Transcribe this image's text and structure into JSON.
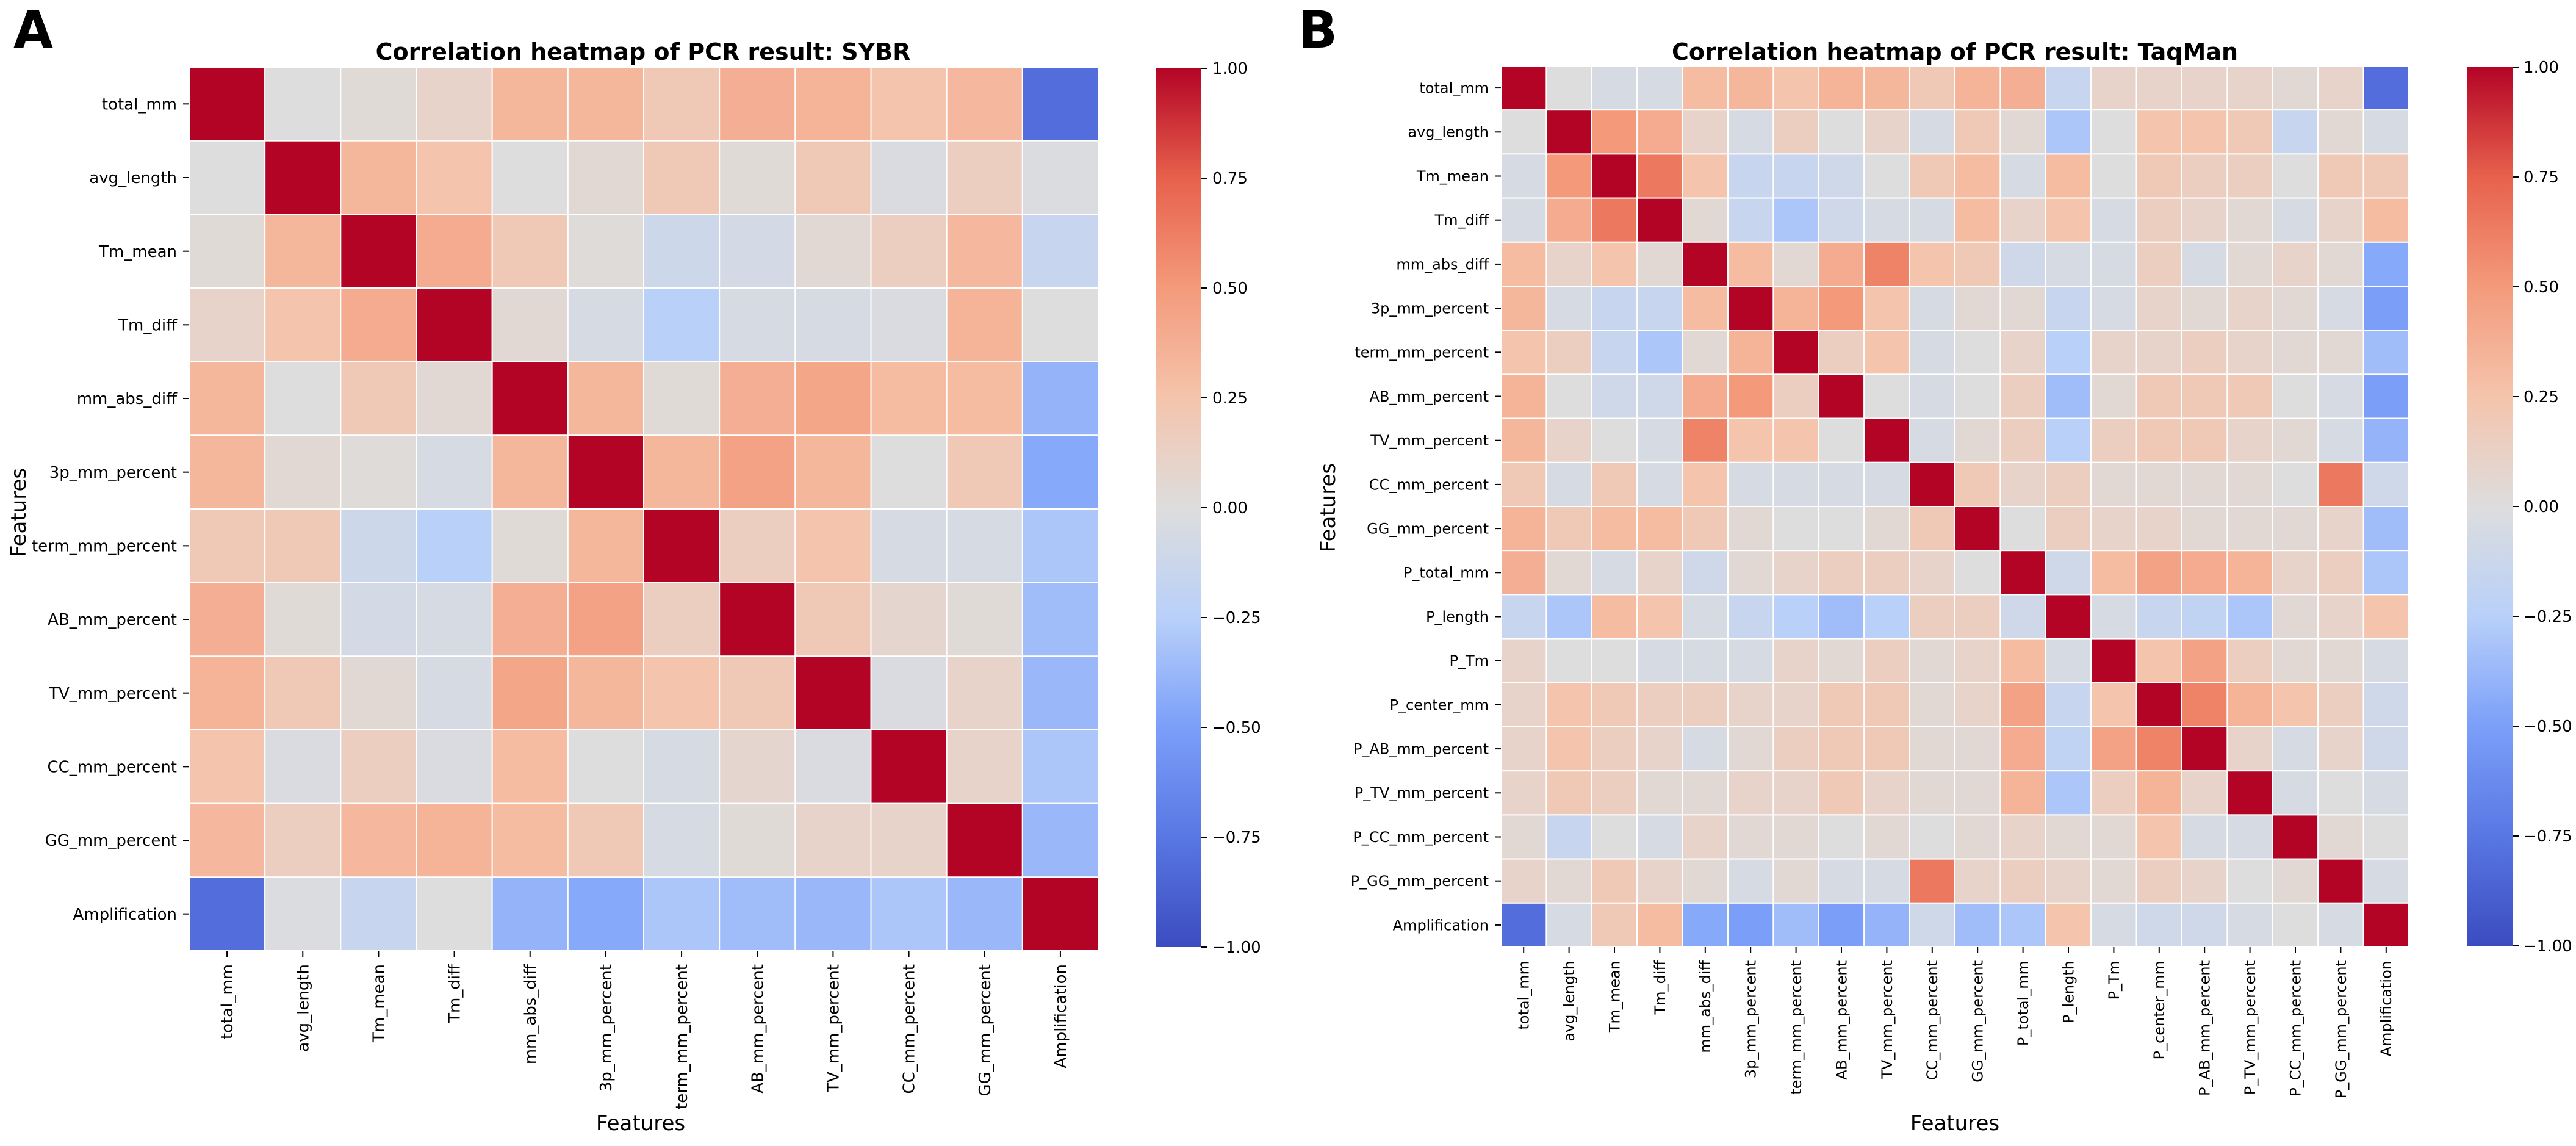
{
  "panel_letters": [
    "A",
    "B"
  ],
  "colorbar": {
    "ticks": [
      "1.00",
      "0.75",
      "0.50",
      "0.25",
      "0.00",
      "−0.25",
      "−0.50",
      "−0.75",
      "−1.00"
    ],
    "vmin": -1,
    "vmax": 1,
    "colormap": "coolwarm",
    "colors": {
      "neg_end": "#3b4cc0",
      "mid": "#dddddd",
      "pos_end": "#b40426"
    }
  },
  "chart_data": [
    {
      "type": "heatmap",
      "panel": "A",
      "title": "Correlation heatmap of PCR result: SYBR",
      "xlabel": "Features",
      "ylabel": "Features",
      "labels": [
        "total_mm",
        "avg_length",
        "Tm_mean",
        "Tm_diff",
        "mm_abs_diff",
        "3p_mm_percent",
        "term_mm_percent",
        "AB_mm_percent",
        "TV_mm_percent",
        "CC_mm_percent",
        "GG_mm_percent",
        "Amplification"
      ],
      "clim": [
        -1,
        1
      ],
      "matrix": [
        [
          1.0,
          0.0,
          0.03,
          0.1,
          0.33,
          0.33,
          0.2,
          0.38,
          0.35,
          0.25,
          0.32,
          -0.8
        ],
        [
          0.0,
          1.0,
          0.33,
          0.25,
          0.0,
          0.05,
          0.2,
          0.03,
          0.2,
          -0.03,
          0.15,
          -0.02
        ],
        [
          0.03,
          0.33,
          1.0,
          0.4,
          0.2,
          0.02,
          -0.12,
          -0.07,
          0.05,
          0.15,
          0.32,
          -0.15
        ],
        [
          0.1,
          0.25,
          0.4,
          1.0,
          0.05,
          -0.05,
          -0.25,
          -0.05,
          -0.05,
          -0.03,
          0.35,
          0.0
        ],
        [
          0.33,
          0.0,
          0.2,
          0.05,
          1.0,
          0.33,
          0.03,
          0.38,
          0.43,
          0.3,
          0.3,
          -0.4
        ],
        [
          0.33,
          0.05,
          0.02,
          -0.05,
          0.33,
          1.0,
          0.33,
          0.45,
          0.33,
          0.0,
          0.2,
          -0.45
        ],
        [
          0.2,
          0.2,
          -0.12,
          -0.25,
          0.03,
          0.33,
          1.0,
          0.15,
          0.25,
          -0.05,
          -0.05,
          -0.3
        ],
        [
          0.38,
          0.03,
          -0.07,
          -0.05,
          0.38,
          0.45,
          0.15,
          1.0,
          0.2,
          0.07,
          0.03,
          -0.35
        ],
        [
          0.35,
          0.2,
          0.05,
          -0.05,
          0.43,
          0.33,
          0.25,
          0.2,
          1.0,
          -0.03,
          0.1,
          -0.38
        ],
        [
          0.25,
          -0.03,
          0.15,
          -0.03,
          0.3,
          0.0,
          -0.05,
          0.07,
          -0.03,
          1.0,
          0.1,
          -0.3
        ],
        [
          0.32,
          0.15,
          0.32,
          0.35,
          0.3,
          0.2,
          -0.05,
          0.03,
          0.1,
          0.1,
          1.0,
          -0.38
        ],
        [
          -0.8,
          -0.02,
          -0.15,
          0.0,
          -0.4,
          -0.45,
          -0.3,
          -0.35,
          -0.38,
          -0.3,
          -0.38,
          1.0
        ]
      ]
    },
    {
      "type": "heatmap",
      "panel": "B",
      "title": "Correlation heatmap of PCR result: TaqMan",
      "xlabel": "Features",
      "ylabel": "Features",
      "labels": [
        "total_mm",
        "avg_length",
        "Tm_mean",
        "Tm_diff",
        "mm_abs_diff",
        "3p_mm_percent",
        "term_mm_percent",
        "AB_mm_percent",
        "TV_mm_percent",
        "CC_mm_percent",
        "GG_mm_percent",
        "P_total_mm",
        "P_length",
        "P_Tm",
        "P_center_mm",
        "P_AB_mm_percent",
        "P_TV_mm_percent",
        "P_CC_mm_percent",
        "P_GG_mm_percent",
        "Amplification"
      ],
      "clim": [
        -1,
        1
      ],
      "matrix": [
        [
          1.0,
          0.0,
          -0.05,
          -0.05,
          0.3,
          0.33,
          0.25,
          0.35,
          0.33,
          0.2,
          0.35,
          0.38,
          -0.15,
          0.1,
          0.1,
          0.1,
          0.1,
          0.05,
          0.1,
          -0.8
        ],
        [
          0.0,
          1.0,
          0.5,
          0.4,
          0.1,
          -0.05,
          0.15,
          0.0,
          0.1,
          -0.05,
          0.2,
          0.05,
          -0.3,
          0.0,
          0.25,
          0.25,
          0.2,
          -0.15,
          0.05,
          -0.05
        ],
        [
          -0.05,
          0.5,
          1.0,
          0.65,
          0.25,
          -0.15,
          -0.15,
          -0.1,
          0.0,
          0.2,
          0.3,
          -0.05,
          0.3,
          0.0,
          0.2,
          0.15,
          0.15,
          0.0,
          0.2,
          0.2
        ],
        [
          -0.05,
          0.4,
          0.65,
          1.0,
          0.05,
          -0.15,
          -0.3,
          -0.1,
          -0.05,
          -0.05,
          0.3,
          0.1,
          0.25,
          -0.05,
          0.15,
          0.1,
          0.05,
          -0.05,
          0.1,
          0.3
        ],
        [
          0.3,
          0.1,
          0.25,
          0.05,
          1.0,
          0.3,
          0.05,
          0.4,
          0.6,
          0.25,
          0.2,
          -0.1,
          -0.05,
          -0.05,
          0.15,
          -0.05,
          0.05,
          0.1,
          0.05,
          -0.45
        ],
        [
          0.33,
          -0.05,
          -0.15,
          -0.15,
          0.3,
          1.0,
          0.35,
          0.5,
          0.25,
          -0.05,
          0.05,
          0.05,
          -0.15,
          -0.05,
          0.1,
          0.05,
          0.1,
          0.05,
          -0.05,
          -0.5
        ],
        [
          0.25,
          0.15,
          -0.15,
          -0.3,
          0.05,
          0.35,
          1.0,
          0.15,
          0.25,
          -0.05,
          0.0,
          0.1,
          -0.25,
          0.1,
          0.1,
          0.15,
          0.1,
          0.05,
          0.05,
          -0.35
        ],
        [
          0.35,
          0.0,
          -0.1,
          -0.1,
          0.4,
          0.5,
          0.15,
          1.0,
          0.0,
          -0.05,
          0.0,
          0.15,
          -0.35,
          0.05,
          0.2,
          0.2,
          0.2,
          0.0,
          -0.05,
          -0.5
        ],
        [
          0.33,
          0.1,
          0.0,
          -0.05,
          0.6,
          0.25,
          0.25,
          0.0,
          1.0,
          -0.05,
          0.05,
          0.15,
          -0.25,
          0.15,
          0.2,
          0.2,
          0.1,
          0.05,
          -0.05,
          -0.4
        ],
        [
          0.2,
          -0.05,
          0.2,
          -0.05,
          0.25,
          -0.05,
          -0.05,
          -0.05,
          -0.05,
          1.0,
          0.2,
          0.1,
          0.15,
          0.05,
          0.05,
          0.05,
          0.05,
          0.0,
          0.65,
          -0.1
        ],
        [
          0.35,
          0.2,
          0.3,
          0.3,
          0.2,
          0.05,
          0.0,
          0.0,
          0.05,
          0.2,
          1.0,
          0.0,
          0.15,
          0.1,
          0.1,
          0.05,
          0.05,
          0.05,
          0.1,
          -0.35
        ],
        [
          0.38,
          0.05,
          -0.05,
          0.1,
          -0.1,
          0.05,
          0.1,
          0.15,
          0.15,
          0.1,
          0.0,
          1.0,
          -0.1,
          0.3,
          0.45,
          0.4,
          0.35,
          0.1,
          0.15,
          -0.3
        ],
        [
          -0.15,
          -0.3,
          0.3,
          0.25,
          -0.05,
          -0.15,
          -0.25,
          -0.35,
          -0.25,
          0.15,
          0.15,
          -0.1,
          1.0,
          -0.05,
          -0.15,
          -0.2,
          -0.3,
          0.05,
          0.1,
          0.25
        ],
        [
          0.1,
          0.0,
          0.0,
          -0.05,
          -0.05,
          -0.05,
          0.1,
          0.05,
          0.15,
          0.05,
          0.1,
          0.3,
          -0.05,
          1.0,
          0.25,
          0.45,
          0.15,
          0.05,
          0.05,
          -0.05
        ],
        [
          0.1,
          0.25,
          0.2,
          0.15,
          0.15,
          0.1,
          0.1,
          0.2,
          0.2,
          0.05,
          0.1,
          0.45,
          -0.15,
          0.25,
          1.0,
          0.6,
          0.35,
          0.25,
          0.15,
          -0.1
        ],
        [
          0.1,
          0.25,
          0.15,
          0.1,
          -0.05,
          0.05,
          0.15,
          0.2,
          0.2,
          0.05,
          0.05,
          0.4,
          -0.2,
          0.45,
          0.6,
          1.0,
          0.1,
          -0.05,
          0.1,
          -0.1
        ],
        [
          0.1,
          0.2,
          0.15,
          0.05,
          0.05,
          0.1,
          0.1,
          0.2,
          0.1,
          0.05,
          0.05,
          0.35,
          -0.3,
          0.15,
          0.35,
          0.1,
          1.0,
          -0.05,
          0.0,
          -0.05
        ],
        [
          0.05,
          -0.15,
          0.0,
          -0.05,
          0.1,
          0.05,
          0.05,
          0.0,
          0.05,
          0.0,
          0.05,
          0.1,
          0.05,
          0.05,
          0.25,
          -0.05,
          -0.05,
          1.0,
          0.05,
          0.0
        ],
        [
          0.1,
          0.05,
          0.2,
          0.1,
          0.05,
          -0.05,
          0.05,
          -0.05,
          -0.05,
          0.65,
          0.1,
          0.15,
          0.1,
          0.05,
          0.15,
          0.1,
          0.0,
          0.05,
          1.0,
          -0.05
        ],
        [
          -0.8,
          -0.05,
          0.2,
          0.3,
          -0.45,
          -0.5,
          -0.35,
          -0.5,
          -0.4,
          -0.1,
          -0.35,
          -0.3,
          0.25,
          -0.05,
          -0.1,
          -0.1,
          -0.05,
          0.0,
          -0.05,
          1.0
        ]
      ]
    }
  ]
}
